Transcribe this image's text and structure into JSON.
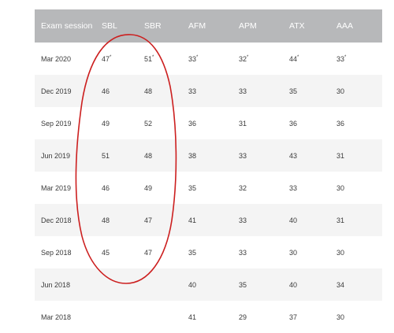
{
  "table": {
    "headers": [
      "Exam session",
      "SBL",
      "SBR",
      "AFM",
      "APM",
      "ATX",
      "AAA"
    ],
    "rows": [
      {
        "session": "Mar 2020",
        "sbl": "47",
        "sbl_mark": "*",
        "sbr": "51",
        "sbr_mark": "*",
        "afm": "33",
        "afm_mark": "*",
        "apm": "32",
        "apm_mark": "*",
        "atx": "44",
        "atx_mark": "*",
        "aaa": "33",
        "aaa_mark": "*"
      },
      {
        "session": "Dec 2019",
        "sbl": "46",
        "sbl_mark": "",
        "sbr": "48",
        "sbr_mark": "",
        "afm": "33",
        "afm_mark": "",
        "apm": "33",
        "apm_mark": "",
        "atx": "35",
        "atx_mark": "",
        "aaa": "30",
        "aaa_mark": ""
      },
      {
        "session": "Sep 2019",
        "sbl": "49",
        "sbl_mark": "",
        "sbr": "52",
        "sbr_mark": "",
        "afm": "36",
        "afm_mark": "",
        "apm": "31",
        "apm_mark": "",
        "atx": "36",
        "atx_mark": "",
        "aaa": "36",
        "aaa_mark": ""
      },
      {
        "session": "Jun 2019",
        "sbl": "51",
        "sbl_mark": "",
        "sbr": "48",
        "sbr_mark": "",
        "afm": "38",
        "afm_mark": "",
        "apm": "33",
        "apm_mark": "",
        "atx": "43",
        "atx_mark": "",
        "aaa": "31",
        "aaa_mark": ""
      },
      {
        "session": "Mar 2019",
        "sbl": "46",
        "sbl_mark": "",
        "sbr": "49",
        "sbr_mark": "",
        "afm": "35",
        "afm_mark": "",
        "apm": "32",
        "apm_mark": "",
        "atx": "33",
        "atx_mark": "",
        "aaa": "30",
        "aaa_mark": ""
      },
      {
        "session": "Dec 2018",
        "sbl": "48",
        "sbl_mark": "",
        "sbr": "47",
        "sbr_mark": "",
        "afm": "41",
        "afm_mark": "",
        "apm": "33",
        "apm_mark": "",
        "atx": "40",
        "atx_mark": "",
        "aaa": "31",
        "aaa_mark": ""
      },
      {
        "session": "Sep 2018",
        "sbl": "45",
        "sbl_mark": "",
        "sbr": "47",
        "sbr_mark": "",
        "afm": "35",
        "afm_mark": "",
        "apm": "33",
        "apm_mark": "",
        "atx": "30",
        "atx_mark": "",
        "aaa": "30",
        "aaa_mark": ""
      },
      {
        "session": "Jun 2018",
        "sbl": "",
        "sbl_mark": "",
        "sbr": "",
        "sbr_mark": "",
        "afm": "40",
        "afm_mark": "",
        "apm": "35",
        "apm_mark": "",
        "atx": "40",
        "atx_mark": "",
        "aaa": "34",
        "aaa_mark": ""
      },
      {
        "session": "Mar 2018",
        "sbl": "",
        "sbl_mark": "",
        "sbr": "",
        "sbr_mark": "",
        "afm": "41",
        "afm_mark": "",
        "apm": "29",
        "apm_mark": "",
        "atx": "37",
        "atx_mark": "",
        "aaa": "30",
        "aaa_mark": ""
      }
    ]
  },
  "annotation": {
    "shape": "hand-drawn ellipse around SBL and SBR columns",
    "color": "#cc1f1f"
  }
}
